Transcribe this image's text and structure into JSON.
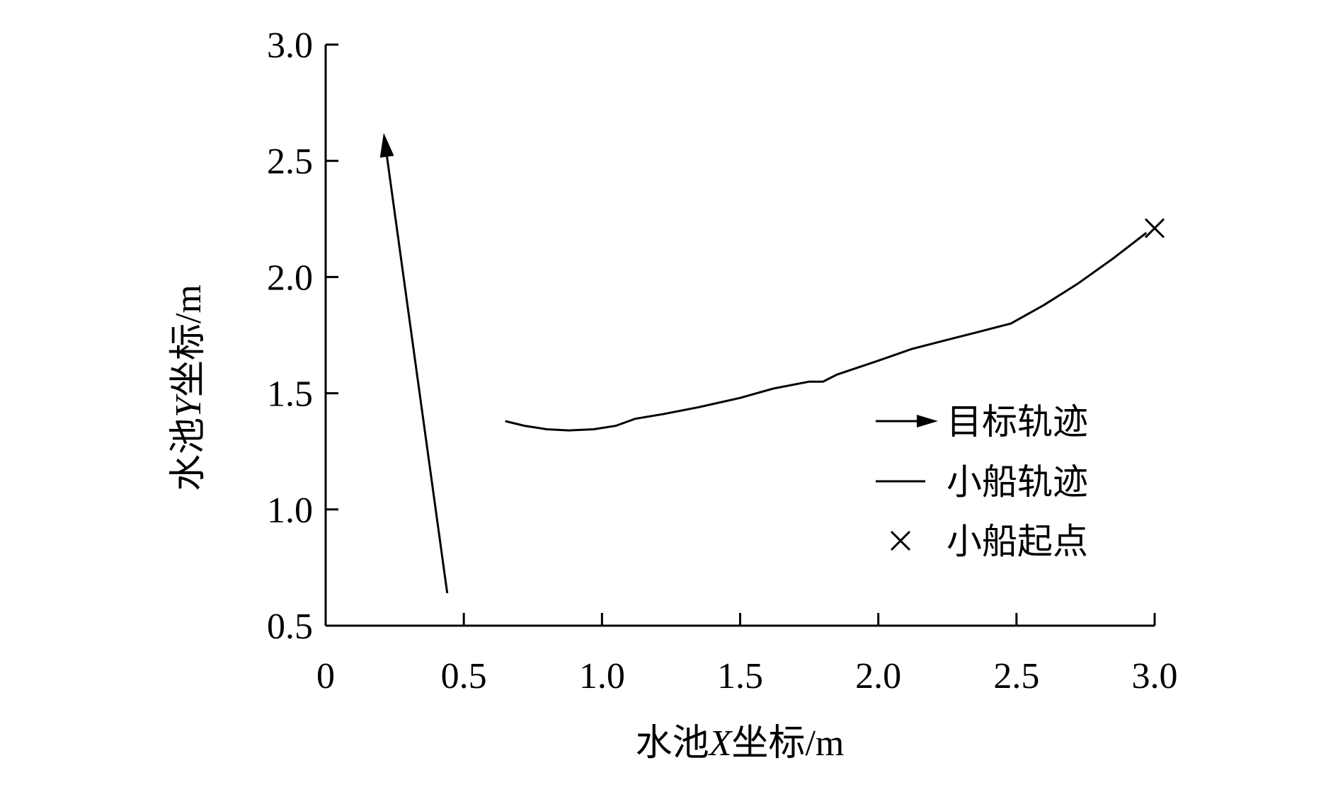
{
  "chart_data": {
    "type": "line",
    "xlabel": {
      "pre": "水池",
      "var": "X",
      "post": "坐标",
      "unit": "/m"
    },
    "ylabel": {
      "pre": "水池",
      "var": "Y",
      "post": "坐标",
      "unit": "/m"
    },
    "xlim": [
      0,
      3.0
    ],
    "ylim": [
      0.5,
      3.0
    ],
    "xticks": [
      {
        "value": 0,
        "label": "0"
      },
      {
        "value": 0.5,
        "label": "0.5"
      },
      {
        "value": 1.0,
        "label": "1.0"
      },
      {
        "value": 1.5,
        "label": "1.5"
      },
      {
        "value": 2.0,
        "label": "2.0"
      },
      {
        "value": 2.5,
        "label": "2.5"
      },
      {
        "value": 3.0,
        "label": "3.0"
      }
    ],
    "yticks": [
      {
        "value": 0.5,
        "label": "0.5"
      },
      {
        "value": 1.0,
        "label": "1.0"
      },
      {
        "value": 1.5,
        "label": "1.5"
      },
      {
        "value": 2.0,
        "label": "2.0"
      },
      {
        "value": 2.5,
        "label": "2.5"
      },
      {
        "value": 3.0,
        "label": "3.0"
      }
    ],
    "grid": false,
    "legend_position": "right",
    "series": [
      {
        "name": "目标轨迹",
        "style": "arrow",
        "x": [
          0.44,
          0.21
        ],
        "y": [
          0.64,
          2.62
        ]
      },
      {
        "name": "小船轨迹",
        "style": "line",
        "x": [
          0.65,
          0.72,
          0.8,
          0.88,
          0.97,
          1.05,
          1.12,
          1.22,
          1.35,
          1.5,
          1.62,
          1.75,
          1.8,
          1.85,
          2.0,
          2.12,
          2.25,
          2.35,
          2.48,
          2.6,
          2.72,
          2.85,
          2.97
        ],
        "y": [
          1.38,
          1.36,
          1.345,
          1.34,
          1.345,
          1.36,
          1.39,
          1.41,
          1.44,
          1.48,
          1.52,
          1.55,
          1.55,
          1.58,
          1.64,
          1.69,
          1.73,
          1.76,
          1.8,
          1.88,
          1.97,
          2.08,
          2.19
        ]
      },
      {
        "name": "小船起点",
        "style": "marker-x",
        "x": [
          3.0
        ],
        "y": [
          2.21
        ]
      }
    ]
  }
}
